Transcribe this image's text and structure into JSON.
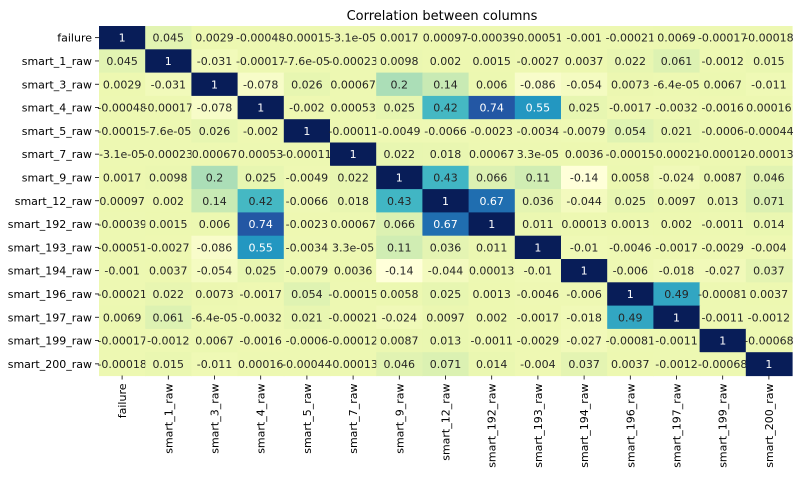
{
  "chart_data": {
    "type": "heatmap",
    "title": "Correlation between columns",
    "rows": [
      "failure",
      "smart_1_raw",
      "smart_3_raw",
      "smart_4_raw",
      "smart_5_raw",
      "smart_7_raw",
      "smart_9_raw",
      "smart_12_raw",
      "smart_192_raw",
      "smart_193_raw",
      "smart_194_raw",
      "smart_196_raw",
      "smart_197_raw",
      "smart_199_raw",
      "smart_200_raw"
    ],
    "columns": [
      "failure",
      "smart_1_raw",
      "smart_3_raw",
      "smart_4_raw",
      "smart_5_raw",
      "smart_7_raw",
      "smart_9_raw",
      "smart_12_raw",
      "smart_192_raw",
      "smart_193_raw",
      "smart_194_raw",
      "smart_196_raw",
      "smart_197_raw",
      "smart_199_raw",
      "smart_200_raw"
    ],
    "values": [
      [
        1,
        0.045,
        0.0029,
        -0.00048,
        -0.00015,
        -3.1e-05,
        0.0017,
        0.00097,
        -0.00039,
        -0.00051,
        -0.001,
        -0.00021,
        0.0069,
        -0.00017,
        -0.00018
      ],
      [
        0.045,
        1,
        -0.031,
        -0.00017,
        -7.6e-05,
        -0.00023,
        0.0098,
        0.002,
        0.0015,
        -0.0027,
        0.0037,
        0.022,
        0.061,
        -0.0012,
        0.015
      ],
      [
        0.0029,
        -0.031,
        1,
        -0.078,
        0.026,
        0.00067,
        0.2,
        0.14,
        0.006,
        -0.086,
        -0.054,
        0.0073,
        -6.4e-05,
        0.0067,
        -0.011
      ],
      [
        -0.00048,
        -0.00017,
        -0.078,
        1,
        -0.002,
        0.00053,
        0.025,
        0.42,
        0.74,
        0.55,
        0.025,
        -0.0017,
        -0.0032,
        -0.0016,
        0.00016
      ],
      [
        -0.00015,
        -7.6e-05,
        0.026,
        -0.002,
        1,
        -0.00011,
        -0.0049,
        -0.0066,
        -0.0023,
        -0.0034,
        -0.0079,
        0.054,
        0.021,
        -0.0006,
        -0.00044
      ],
      [
        -3.1e-05,
        -0.00023,
        0.00067,
        0.00053,
        -0.00011,
        1,
        0.022,
        0.018,
        0.00067,
        3.3e-05,
        0.0036,
        -0.00015,
        -0.00021,
        -0.00012,
        -0.00013
      ],
      [
        0.0017,
        0.0098,
        0.2,
        0.025,
        -0.0049,
        0.022,
        1,
        0.43,
        0.066,
        0.11,
        -0.14,
        0.0058,
        -0.024,
        0.0087,
        0.046
      ],
      [
        0.00097,
        0.002,
        0.14,
        0.42,
        -0.0066,
        0.018,
        0.43,
        1,
        0.67,
        0.036,
        -0.044,
        0.025,
        0.0097,
        0.013,
        0.071
      ],
      [
        -0.00039,
        0.0015,
        0.006,
        0.74,
        -0.0023,
        0.00067,
        0.066,
        0.67,
        1,
        0.011,
        0.00013,
        0.0013,
        0.002,
        -0.0011,
        0.014
      ],
      [
        -0.00051,
        -0.0027,
        -0.086,
        0.55,
        -0.0034,
        3.3e-05,
        0.11,
        0.036,
        0.011,
        1,
        -0.01,
        -0.0046,
        -0.0017,
        -0.0029,
        -0.004
      ],
      [
        -0.001,
        0.0037,
        -0.054,
        0.025,
        -0.0079,
        0.0036,
        -0.14,
        -0.044,
        0.00013,
        -0.01,
        1,
        -0.006,
        -0.018,
        -0.027,
        0.037
      ],
      [
        -0.00021,
        0.022,
        0.0073,
        -0.0017,
        0.054,
        -0.00015,
        0.0058,
        0.025,
        0.0013,
        -0.0046,
        -0.006,
        1,
        0.49,
        -0.00081,
        0.0037
      ],
      [
        0.0069,
        0.061,
        -6.4e-05,
        -0.0032,
        0.021,
        -0.00021,
        -0.024,
        0.0097,
        0.002,
        -0.0017,
        -0.018,
        0.49,
        1,
        -0.0011,
        -0.0012
      ],
      [
        -0.00017,
        -0.0012,
        0.0067,
        -0.0016,
        -0.0006,
        -0.00012,
        0.0087,
        0.013,
        -0.0011,
        -0.0029,
        -0.027,
        -0.00081,
        -0.0011,
        1,
        -0.00068
      ],
      [
        -0.00018,
        0.015,
        -0.011,
        0.00016,
        -0.00044,
        -0.00013,
        0.046,
        0.071,
        0.014,
        -0.004,
        0.037,
        0.0037,
        -0.0012,
        -0.00068,
        1
      ]
    ],
    "labels": [
      [
        "1",
        "0.045",
        "0.0029",
        "-0.00048",
        "-0.00015",
        "-3.1e-05",
        "0.0017",
        "0.00097",
        "-0.00039",
        "-0.00051",
        "-0.001",
        "-0.00021",
        "0.0069",
        "-0.00017",
        "-0.00018"
      ],
      [
        "0.045",
        "1",
        "-0.031",
        "-0.00017",
        "-7.6e-05",
        "-0.00023",
        "0.0098",
        "0.002",
        "0.0015",
        "-0.0027",
        "0.0037",
        "0.022",
        "0.061",
        "-0.0012",
        "0.015"
      ],
      [
        "0.0029",
        "-0.031",
        "1",
        "-0.078",
        "0.026",
        "0.00067",
        "0.2",
        "0.14",
        "0.006",
        "-0.086",
        "-0.054",
        "0.0073",
        "-6.4e-05",
        "0.0067",
        "-0.011"
      ],
      [
        "-0.00048",
        "-0.00017",
        "-0.078",
        "1",
        "-0.002",
        "0.00053",
        "0.025",
        "0.42",
        "0.74",
        "0.55",
        "0.025",
        "-0.0017",
        "-0.0032",
        "-0.0016",
        "0.00016"
      ],
      [
        "-0.00015",
        "-7.6e-05",
        "0.026",
        "-0.002",
        "1",
        "-0.00011",
        "-0.0049",
        "-0.0066",
        "-0.0023",
        "-0.0034",
        "-0.0079",
        "0.054",
        "0.021",
        "-0.0006",
        "-0.00044"
      ],
      [
        "-3.1e-05",
        "-0.00023",
        "0.00067",
        "0.00053",
        "-0.00011",
        "1",
        "0.022",
        "0.018",
        "0.00067",
        "3.3e-05",
        "0.0036",
        "-0.00015",
        "-0.00021",
        "-0.00012",
        "-0.00013"
      ],
      [
        "0.0017",
        "0.0098",
        "0.2",
        "0.025",
        "-0.0049",
        "0.022",
        "1",
        "0.43",
        "0.066",
        "0.11",
        "-0.14",
        "0.0058",
        "-0.024",
        "0.0087",
        "0.046"
      ],
      [
        "0.00097",
        "0.002",
        "0.14",
        "0.42",
        "-0.0066",
        "0.018",
        "0.43",
        "1",
        "0.67",
        "0.036",
        "-0.044",
        "0.025",
        "0.0097",
        "0.013",
        "0.071"
      ],
      [
        "-0.00039",
        "0.0015",
        "0.006",
        "0.74",
        "-0.0023",
        "0.00067",
        "0.066",
        "0.67",
        "1",
        "0.011",
        "0.00013",
        "0.0013",
        "0.002",
        "-0.0011",
        "0.014"
      ],
      [
        "-0.00051",
        "-0.0027",
        "-0.086",
        "0.55",
        "-0.0034",
        "3.3e-05",
        "0.11",
        "0.036",
        "0.011",
        "1",
        "-0.01",
        "-0.0046",
        "-0.0017",
        "-0.0029",
        "-0.004"
      ],
      [
        "-0.001",
        "0.0037",
        "-0.054",
        "0.025",
        "-0.0079",
        "0.0036",
        "-0.14",
        "-0.044",
        "0.00013",
        "-0.01",
        "1",
        "-0.006",
        "-0.018",
        "-0.027",
        "0.037"
      ],
      [
        "-0.00021",
        "0.022",
        "0.0073",
        "-0.0017",
        "0.054",
        "-0.00015",
        "0.0058",
        "0.025",
        "0.0013",
        "-0.0046",
        "-0.006",
        "1",
        "0.49",
        "-0.00081",
        "0.0037"
      ],
      [
        "0.0069",
        "0.061",
        "-6.4e-05",
        "-0.0032",
        "0.021",
        "-0.00021",
        "-0.024",
        "0.0097",
        "0.002",
        "-0.0017",
        "-0.018",
        "0.49",
        "1",
        "-0.0011",
        "-0.0012"
      ],
      [
        "-0.00017",
        "-0.0012",
        "0.0067",
        "-0.0016",
        "-0.0006",
        "-0.00012",
        "0.0087",
        "0.013",
        "-0.0011",
        "-0.0029",
        "-0.027",
        "-0.00081",
        "-0.0011",
        "1",
        "-0.00068"
      ],
      [
        "-0.00018",
        "0.015",
        "-0.011",
        "0.00016",
        "-0.00044",
        "-0.00013",
        "0.046",
        "0.071",
        "0.014",
        "-0.004",
        "0.037",
        "0.0037",
        "-0.0012",
        "-0.00068",
        "1"
      ]
    ],
    "colormap": "YlGnBu",
    "colorbar": false,
    "annotated": true
  }
}
